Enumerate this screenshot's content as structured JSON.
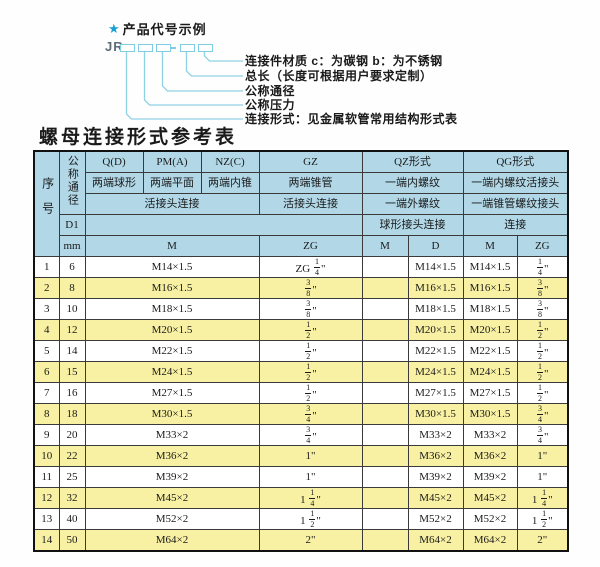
{
  "diagram": {
    "star": "★",
    "heading": "产品代号示例",
    "code_prefix": "JR",
    "labels": [
      "连接件材质  c：为碳钢  b：为不锈钢",
      "总长（长度可根据用户要求定制）",
      "公称通径",
      "公称压力",
      "连接形式：见金属软管常用结构形式表"
    ]
  },
  "table_title": "螺母连接形式参考表",
  "table": {
    "header": {
      "serial": "序号",
      "nominal_diameter": "公称通径",
      "d1": "D1",
      "mm": "mm",
      "q_code": "Q(D)",
      "q_desc": "两端球形",
      "pm_code": "PM(A)",
      "pm_desc": "两端平面",
      "nz_code": "NZ(C)",
      "nz_desc": "两端内锥",
      "union_conn": "活接头连接",
      "gz_code": "GZ",
      "gz_desc": "两端锥管",
      "gz_conn": "活接头连接",
      "gz_unit": "ZG",
      "m_unit": "M",
      "qz_code": "QZ形式",
      "qz_row2": "一端内螺纹",
      "qz_row3": "一端外螺纹",
      "qz_row4": "球形接头连接",
      "qz_unit1": "M",
      "qz_unit2": "D",
      "qg_code": "QG形式",
      "qg_row2": "一端内螺纹活接头",
      "qg_row3": "一端锥管螺纹接头",
      "qg_row4": "连接",
      "qg_unit1": "M",
      "qg_unit2": "ZG"
    },
    "rows": [
      {
        "no": "1",
        "dn": "6",
        "m": "M14×1.5",
        "zg": "ZG 1/4\"",
        "qz_m": "",
        "qz_d": "M14×1.5",
        "qg_m": "M14×1.5",
        "qg_zg": "1/4\""
      },
      {
        "no": "2",
        "dn": "8",
        "m": "M16×1.5",
        "zg": "3/8\"",
        "qz_m": "",
        "qz_d": "M16×1.5",
        "qg_m": "M16×1.5",
        "qg_zg": "3/8\""
      },
      {
        "no": "3",
        "dn": "10",
        "m": "M18×1.5",
        "zg": "3/8\"",
        "qz_m": "",
        "qz_d": "M18×1.5",
        "qg_m": "M18×1.5",
        "qg_zg": "3/8\""
      },
      {
        "no": "4",
        "dn": "12",
        "m": "M20×1.5",
        "zg": "1/2\"",
        "qz_m": "",
        "qz_d": "M20×1.5",
        "qg_m": "M20×1.5",
        "qg_zg": "1/2\""
      },
      {
        "no": "5",
        "dn": "14",
        "m": "M22×1.5",
        "zg": "1/2\"",
        "qz_m": "",
        "qz_d": "M22×1.5",
        "qg_m": "M22×1.5",
        "qg_zg": "1/2\""
      },
      {
        "no": "6",
        "dn": "15",
        "m": "M24×1.5",
        "zg": "1/2\"",
        "qz_m": "",
        "qz_d": "M24×1.5",
        "qg_m": "M24×1.5",
        "qg_zg": "1/2\""
      },
      {
        "no": "7",
        "dn": "16",
        "m": "M27×1.5",
        "zg": "1/2\"",
        "qz_m": "",
        "qz_d": "M27×1.5",
        "qg_m": "M27×1.5",
        "qg_zg": "1/2\""
      },
      {
        "no": "8",
        "dn": "18",
        "m": "M30×1.5",
        "zg": "3/4\"",
        "qz_m": "",
        "qz_d": "M30×1.5",
        "qg_m": "M30×1.5",
        "qg_zg": "3/4\""
      },
      {
        "no": "9",
        "dn": "20",
        "m": "M33×2",
        "zg": "3/4\"",
        "qz_m": "",
        "qz_d": "M33×2",
        "qg_m": "M33×2",
        "qg_zg": "3/4\""
      },
      {
        "no": "10",
        "dn": "22",
        "m": "M36×2",
        "zg": "1\"",
        "qz_m": "",
        "qz_d": "M36×2",
        "qg_m": "M36×2",
        "qg_zg": "1\""
      },
      {
        "no": "11",
        "dn": "25",
        "m": "M39×2",
        "zg": "1\"",
        "qz_m": "",
        "qz_d": "M39×2",
        "qg_m": "M39×2",
        "qg_zg": "1\""
      },
      {
        "no": "12",
        "dn": "32",
        "m": "M45×2",
        "zg": "1 1/4\"",
        "qz_m": "",
        "qz_d": "M45×2",
        "qg_m": "M45×2",
        "qg_zg": "1 1/4\""
      },
      {
        "no": "13",
        "dn": "40",
        "m": "M52×2",
        "zg": "1 1/2\"",
        "qz_m": "",
        "qz_d": "M52×2",
        "qg_m": "M52×2",
        "qg_zg": "1 1/2\""
      },
      {
        "no": "14",
        "dn": "50",
        "m": "M64×2",
        "zg": "2\"",
        "qz_m": "",
        "qz_d": "M64×2",
        "qg_m": "M64×2",
        "qg_zg": "2\""
      }
    ]
  },
  "colors": {
    "header_bg": "#b2d8e8",
    "stripe_bg": "#f8f1a3",
    "leader_line": "#8fd2e4",
    "star_blue": "#189fd6"
  }
}
